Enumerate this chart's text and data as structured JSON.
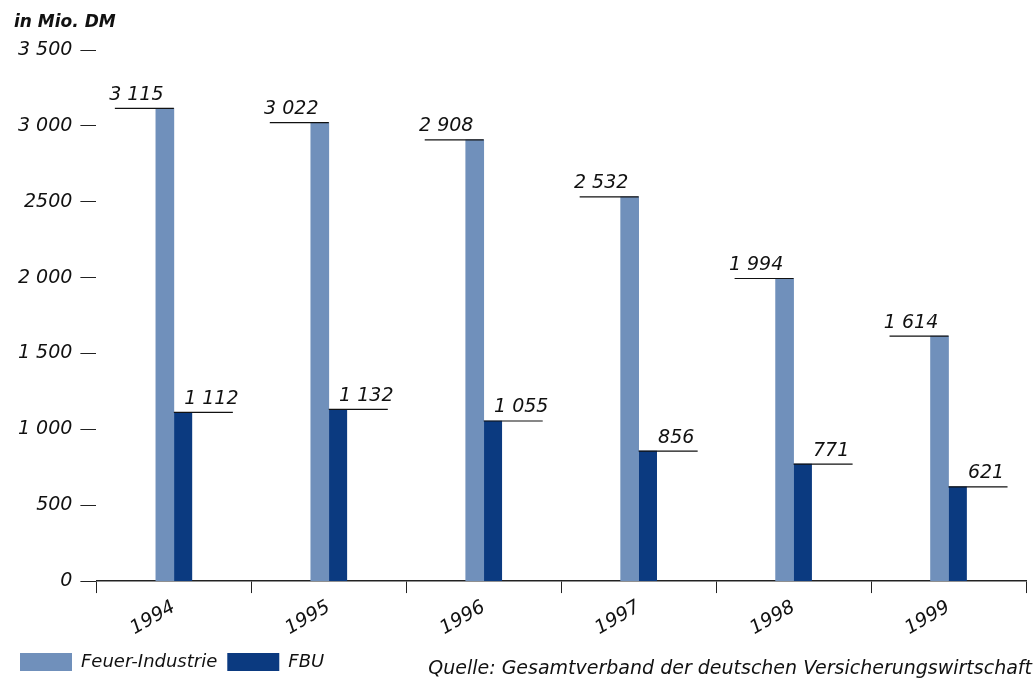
{
  "chart_data": {
    "type": "bar",
    "ylabel": "in Mio. DM",
    "categories": [
      "1994",
      "1995",
      "1996",
      "1997",
      "1998",
      "1999"
    ],
    "series": [
      {
        "name": "Feuer-Industrie",
        "color": "#7090bb",
        "values": [
          3115,
          3022,
          2908,
          2532,
          1994,
          1614
        ],
        "value_labels": [
          "3 115",
          "3 022",
          "2 908",
          "2 532",
          "1 994",
          "1 614"
        ]
      },
      {
        "name": "FBU",
        "color": "#0b3a80",
        "values": [
          1112,
          1132,
          1055,
          856,
          771,
          621
        ],
        "value_labels": [
          "1 112",
          "1 132",
          "1 055",
          "856",
          "771",
          "621"
        ]
      }
    ],
    "ylim": [
      0,
      3500
    ],
    "yticks": [
      {
        "value": 0,
        "label": "0"
      },
      {
        "value": 500,
        "label": "500"
      },
      {
        "value": 1000,
        "label": "1 000"
      },
      {
        "value": 1500,
        "label": "1 500"
      },
      {
        "value": 2000,
        "label": "2 000"
      },
      2500,
      {
        "value": 3000,
        "label": "3 000"
      },
      {
        "value": 3500,
        "label": "3 500"
      }
    ],
    "grid": false,
    "legend": "bottom left",
    "annotations": [
      "Quelle: Gesamtverband der deutschen Versicherungswirtschaft"
    ]
  }
}
